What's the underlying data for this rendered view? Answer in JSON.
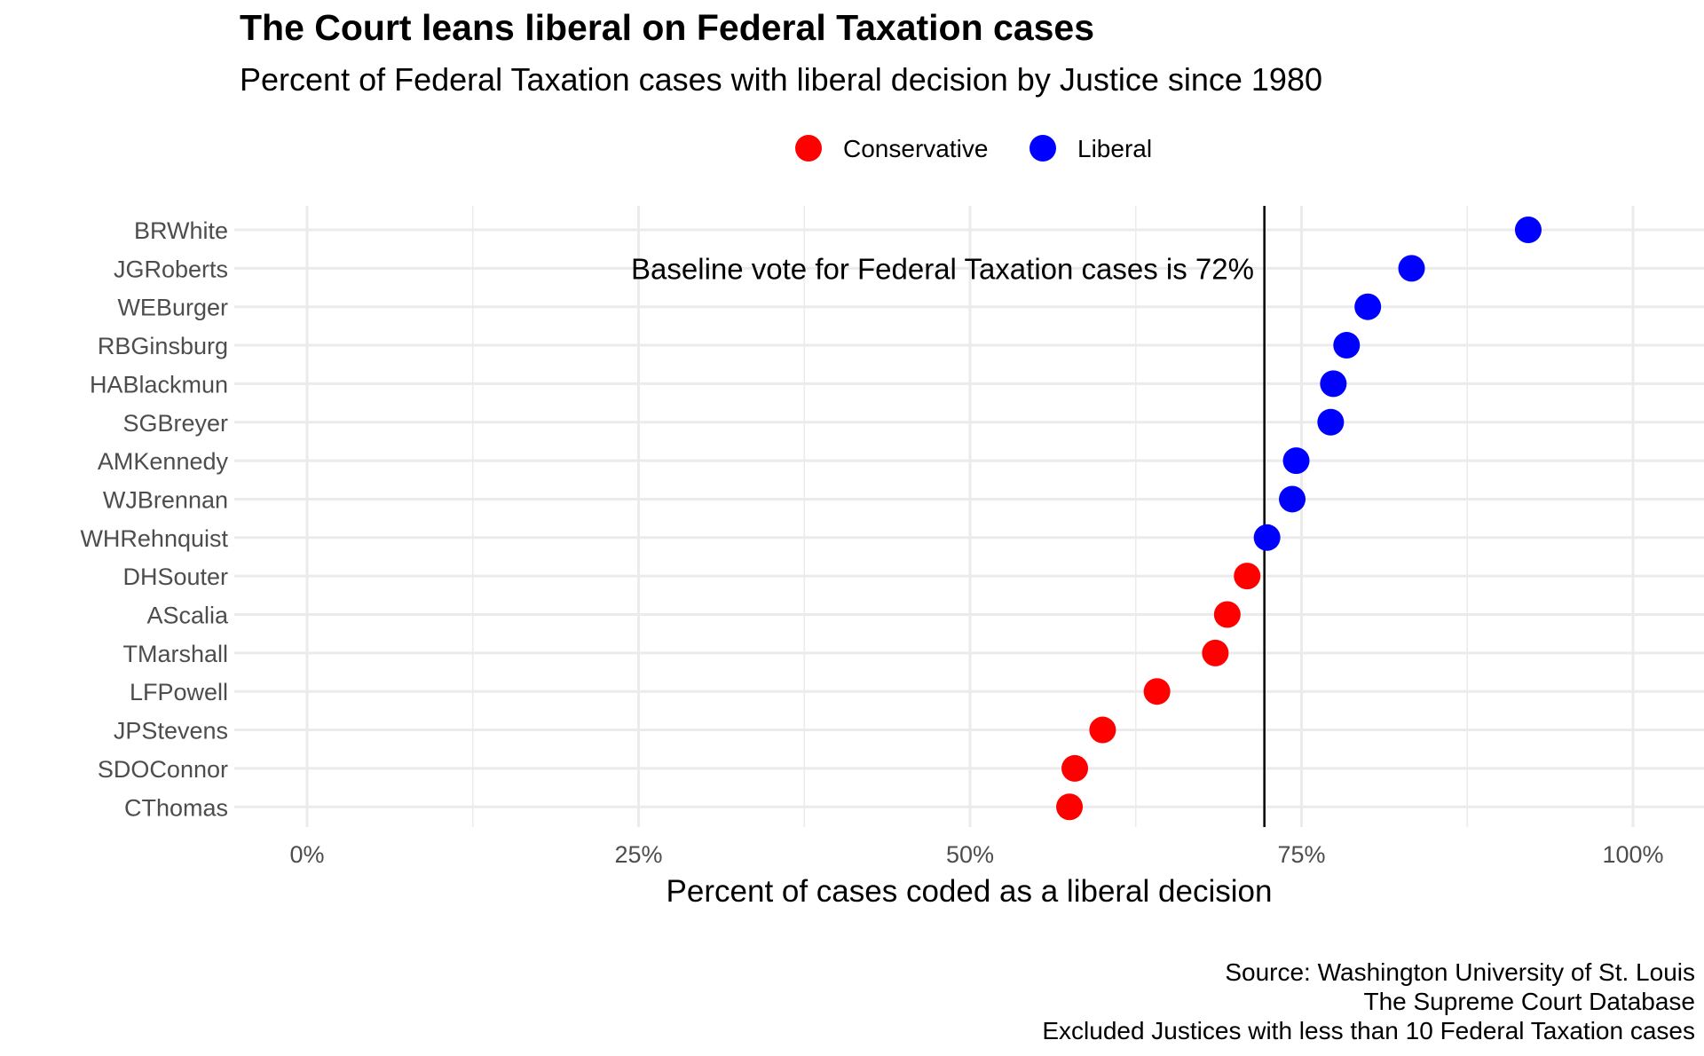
{
  "chart_data": {
    "type": "scatter",
    "title": "The Court leans liberal on Federal Taxation cases",
    "subtitle": "Percent of Federal Taxation cases with liberal decision by Justice since 1980",
    "xlabel": "Percent of cases coded as a liberal decision",
    "ylabel": "",
    "xlim": [
      0,
      1
    ],
    "x_ticks": [
      0,
      0.25,
      0.5,
      0.75,
      1
    ],
    "x_tick_labels": [
      "0%",
      "25%",
      "50%",
      "75%",
      "100%"
    ],
    "grid": true,
    "legend": {
      "placement": "top",
      "entries": [
        {
          "label": "Conservative",
          "color": "#ff0000"
        },
        {
          "label": "Liberal",
          "color": "#0000ff"
        }
      ]
    },
    "baseline": {
      "value": 0.722,
      "label": "Baseline vote for Federal Taxation cases is 72%"
    },
    "points": [
      {
        "justice": "BRWhite",
        "value": 0.921,
        "group": "Liberal"
      },
      {
        "justice": "JGRoberts",
        "value": 0.833,
        "group": "Liberal"
      },
      {
        "justice": "WEBurger",
        "value": 0.8,
        "group": "Liberal"
      },
      {
        "justice": "RBGinsburg",
        "value": 0.784,
        "group": "Liberal"
      },
      {
        "justice": "HABlackmun",
        "value": 0.774,
        "group": "Liberal"
      },
      {
        "justice": "SGBreyer",
        "value": 0.772,
        "group": "Liberal"
      },
      {
        "justice": "AMKennedy",
        "value": 0.746,
        "group": "Liberal"
      },
      {
        "justice": "WJBrennan",
        "value": 0.743,
        "group": "Liberal"
      },
      {
        "justice": "WHRehnquist",
        "value": 0.724,
        "group": "Liberal"
      },
      {
        "justice": "DHSouter",
        "value": 0.709,
        "group": "Conservative"
      },
      {
        "justice": "AScalia",
        "value": 0.694,
        "group": "Conservative"
      },
      {
        "justice": "TMarshall",
        "value": 0.685,
        "group": "Conservative"
      },
      {
        "justice": "LFPowell",
        "value": 0.641,
        "group": "Conservative"
      },
      {
        "justice": "JPStevens",
        "value": 0.6,
        "group": "Conservative"
      },
      {
        "justice": "SDOConnor",
        "value": 0.579,
        "group": "Conservative"
      },
      {
        "justice": "CThomas",
        "value": 0.575,
        "group": "Conservative"
      }
    ],
    "caption": [
      "Source: Washington University of St. Louis",
      "The Supreme Court Database",
      "Excluded Justices with less than 10 Federal Taxation cases"
    ]
  }
}
